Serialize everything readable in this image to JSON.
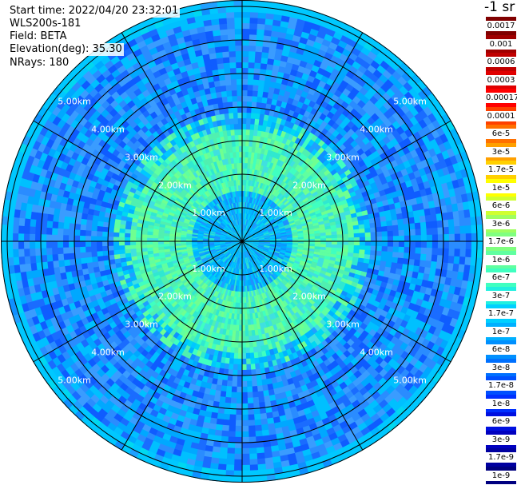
{
  "header": {
    "start_time": "Start time: 2022/04/20 23:32:01",
    "instrument": "WLS200s-181",
    "field": "Field: BETA",
    "elevation": "Elevation(deg): 35.30",
    "nrays": "NRays: 180"
  },
  "colorbar": {
    "title": "-1 sr",
    "entries": [
      {
        "label": "0.0017",
        "color": "#800000"
      },
      {
        "label": "0.001",
        "color": "#a00000"
      },
      {
        "label": "0.0006",
        "color": "#c00000"
      },
      {
        "label": "0.0003",
        "color": "#e00000"
      },
      {
        "label": "0.00017",
        "color": "#ff0000"
      },
      {
        "label": "0.0001",
        "color": "#ff4000"
      },
      {
        "label": "6e-5",
        "color": "#ff7000"
      },
      {
        "label": "3e-5",
        "color": "#ffa000"
      },
      {
        "label": "1.7e-5",
        "color": "#ffd000"
      },
      {
        "label": "1e-5",
        "color": "#ffff00"
      },
      {
        "label": "6e-6",
        "color": "#d0ff30"
      },
      {
        "label": "3e-6",
        "color": "#a0ff60"
      },
      {
        "label": "1.7e-6",
        "color": "#80ff80"
      },
      {
        "label": "1e-6",
        "color": "#60ffa0"
      },
      {
        "label": "6e-7",
        "color": "#40ffc0"
      },
      {
        "label": "3e-7",
        "color": "#20f0e0"
      },
      {
        "label": "1.7e-7",
        "color": "#00d0ff"
      },
      {
        "label": "1e-7",
        "color": "#00b0ff"
      },
      {
        "label": "6e-8",
        "color": "#0090ff"
      },
      {
        "label": "3e-8",
        "color": "#0070ff"
      },
      {
        "label": "1.7e-8",
        "color": "#0050ff"
      },
      {
        "label": "1e-8",
        "color": "#0030ff"
      },
      {
        "label": "6e-9",
        "color": "#0010e0"
      },
      {
        "label": "3e-9",
        "color": "#0000c0"
      },
      {
        "label": "1.7e-9",
        "color": "#0000a0"
      },
      {
        "label": "1e-9",
        "color": "#000080"
      }
    ]
  },
  "ppi": {
    "ring_labels": [
      "1.00km",
      "2.00km",
      "3.00km",
      "4.00km",
      "5.00km"
    ],
    "colors": {
      "outer_rim": "#00c8ff",
      "far_field": "#1e78ff",
      "mid_field": "#00b4ff",
      "near_halo": "#40ffc0",
      "core": "#00a0ff"
    }
  }
}
